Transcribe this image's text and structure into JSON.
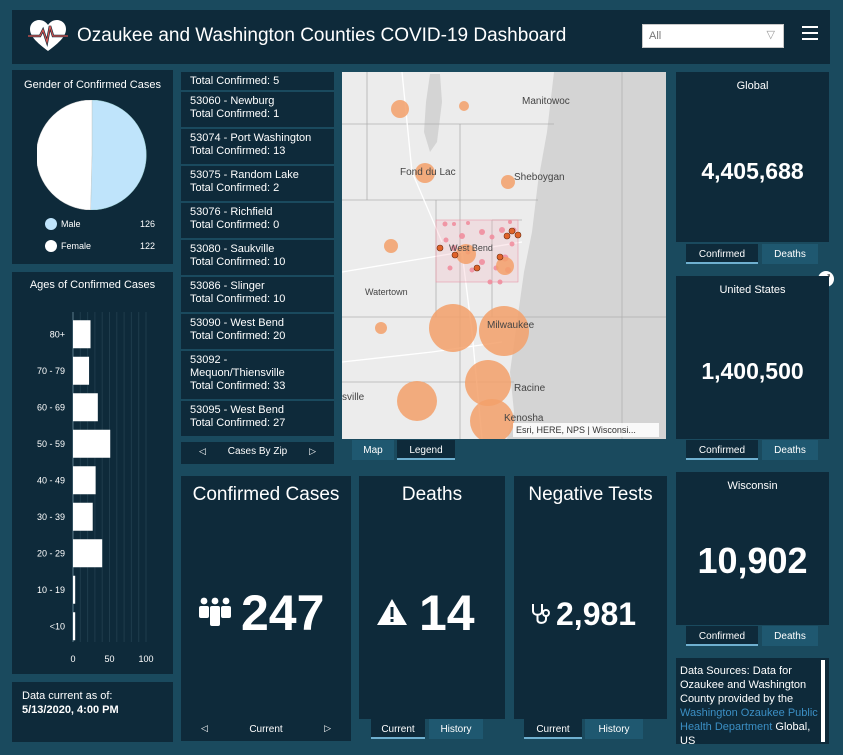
{
  "header": {
    "title": "Ozaukee and Washington Counties COVID-19 Dashboard",
    "filter_value": "All",
    "brand_color": "#0e2a3a",
    "accent_color": "#d9534f"
  },
  "gender_panel": {
    "title": "Gender of Confirmed Cases",
    "legend": [
      {
        "label": "Male",
        "value": "126",
        "color": "#bfe4fb"
      },
      {
        "label": "Female",
        "value": "122",
        "color": "#ffffff"
      }
    ]
  },
  "ages_panel": {
    "title": "Ages of Confirmed Cases"
  },
  "chart_data": {
    "type": "bar",
    "orientation": "horizontal",
    "title": "Ages of Confirmed Cases",
    "categories": [
      "80+",
      "70 - 79",
      "60 - 69",
      "50 - 59",
      "40 - 49",
      "30 - 39",
      "20 - 29",
      "10 - 19",
      "<10"
    ],
    "values": [
      24,
      22,
      34,
      51,
      31,
      27,
      40,
      3,
      3
    ],
    "xlim": [
      0,
      100
    ],
    "xticks": [
      "0",
      "50",
      "100"
    ],
    "grid": true
  },
  "asof": {
    "label": "Data current as of:",
    "date": "5/13/2020, 4:00 PM"
  },
  "ziplist": {
    "items": [
      {
        "name": "",
        "total": "Total Confirmed: 5"
      },
      {
        "name": "53060 - Newburg",
        "total": "Total Confirmed: 1"
      },
      {
        "name": "53074 - Port Washington",
        "total": "Total Confirmed: 13"
      },
      {
        "name": "53075 - Random Lake",
        "total": "Total Confirmed: 2"
      },
      {
        "name": "53076 - Richfield",
        "total": "Total Confirmed: 0"
      },
      {
        "name": "53080 - Saukville",
        "total": "Total Confirmed: 10"
      },
      {
        "name": "53086 - Slinger",
        "total": "Total Confirmed: 10"
      },
      {
        "name": "53090 - West Bend",
        "total": "Total Confirmed: 20"
      },
      {
        "name": "53092 - Mequon/Thiensville",
        "total": "Total Confirmed: 33"
      },
      {
        "name": "53095 - West Bend",
        "total": "Total Confirmed: 27"
      }
    ],
    "footer": "Cases By Zip"
  },
  "map": {
    "labels": {
      "manitowoc": "Manitowoc",
      "fond_du_lac": "Fond du Lac",
      "sheboygan": "Sheboygan",
      "west_bend": "West Bend",
      "watertown": "Watertown",
      "milwaukee": "Milwaukee",
      "racine": "Racine",
      "kenosha": "Kenosha",
      "sville": "sville"
    },
    "attribution": "Esri, HERE, NPS | Wisconsi...",
    "tab_map": "Map",
    "tab_legend": "Legend"
  },
  "confirmed": {
    "title": "Confirmed Cases",
    "value": "247",
    "nav_label": "Current"
  },
  "deaths": {
    "title": "Deaths",
    "value": "14",
    "tab_current": "Current",
    "tab_history": "History"
  },
  "negtests": {
    "title": "Negative Tests",
    "value": "2,981",
    "tab_current": "Current",
    "tab_history": "History"
  },
  "global": {
    "title": "Global",
    "value": "4,405,688",
    "tab_confirmed": "Confirmed",
    "tab_deaths": "Deaths"
  },
  "us": {
    "title": "United States",
    "value": "1,400,500",
    "tab_confirmed": "Confirmed",
    "tab_deaths": "Deaths"
  },
  "wi": {
    "title": "Wisconsin",
    "value": "10,902",
    "tab_confirmed": "Confirmed",
    "tab_deaths": "Deaths"
  },
  "sources": {
    "text": "Data Sources:  Data for Ozaukee and Washington County provided by the",
    "link": "Washington Ozaukee Public Health Department",
    "tail": "Global, US"
  }
}
